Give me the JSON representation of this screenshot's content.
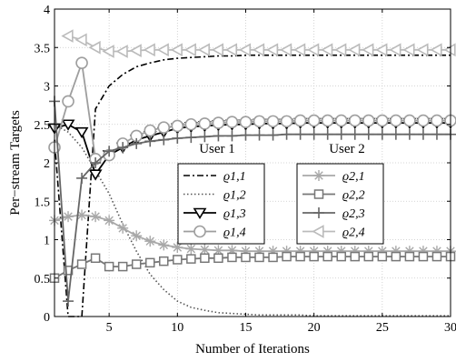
{
  "chart_data": {
    "type": "line",
    "xlabel": "Number of Iterations",
    "ylabel": "Per−stream Targets",
    "xlim": [
      1,
      30
    ],
    "ylim": [
      0,
      4
    ],
    "xticks": [
      5,
      10,
      15,
      20,
      25,
      30
    ],
    "yticks": [
      0,
      0.5,
      1,
      1.5,
      2,
      2.5,
      3,
      3.5,
      4
    ],
    "xtick_labels": [
      "5",
      "10",
      "15",
      "20",
      "25",
      "30"
    ],
    "ytick_labels": [
      "0",
      "0.5",
      "1",
      "1.5",
      "2",
      "2.5",
      "3",
      "3.5",
      "4"
    ],
    "grid": true,
    "legend_groups": [
      {
        "title": "User 1",
        "placement": "center"
      },
      {
        "title": "User 2",
        "placement": "center-right"
      }
    ],
    "x": [
      1,
      2,
      3,
      4,
      5,
      6,
      7,
      8,
      9,
      10,
      11,
      12,
      13,
      14,
      15,
      16,
      17,
      18,
      19,
      20,
      21,
      22,
      23,
      24,
      25,
      26,
      27,
      28,
      29,
      30
    ],
    "series": [
      {
        "name": "ϱ1,1",
        "group": 0,
        "color": "#000000",
        "dash": "7 3 2 3",
        "marker": "none",
        "values": [
          2.3,
          0.0,
          0.0,
          2.7,
          3.0,
          3.15,
          3.25,
          3.3,
          3.34,
          3.36,
          3.37,
          3.38,
          3.39,
          3.39,
          3.4,
          3.4,
          3.4,
          3.4,
          3.4,
          3.4,
          3.4,
          3.4,
          3.4,
          3.4,
          3.4,
          3.4,
          3.4,
          3.4,
          3.4,
          3.4
        ]
      },
      {
        "name": "ϱ1,2",
        "group": 0,
        "color": "#555555",
        "dash": "1.5 2.5",
        "marker": "none",
        "values": [
          2.5,
          2.4,
          2.2,
          1.9,
          1.6,
          1.2,
          0.85,
          0.55,
          0.35,
          0.2,
          0.12,
          0.08,
          0.05,
          0.04,
          0.03,
          0.02,
          0.02,
          0.02,
          0.02,
          0.01,
          0.01,
          0.01,
          0.01,
          0.01,
          0.01,
          0.01,
          0.01,
          0.01,
          0.01,
          0.01
        ]
      },
      {
        "name": "ϱ1,3",
        "group": 0,
        "color": "#000000",
        "dash": "",
        "marker": "triangle-down",
        "values": [
          2.45,
          2.5,
          2.4,
          1.85,
          2.1,
          2.2,
          2.3,
          2.35,
          2.4,
          2.45,
          2.47,
          2.48,
          2.49,
          2.5,
          2.5,
          2.51,
          2.51,
          2.51,
          2.52,
          2.52,
          2.52,
          2.52,
          2.52,
          2.52,
          2.52,
          2.52,
          2.52,
          2.52,
          2.52,
          2.52
        ]
      },
      {
        "name": "ϱ1,4",
        "group": 0,
        "color": "#9e9e9e",
        "dash": "",
        "marker": "circle",
        "values": [
          2.2,
          2.8,
          3.3,
          2.05,
          2.1,
          2.25,
          2.35,
          2.42,
          2.46,
          2.48,
          2.5,
          2.51,
          2.52,
          2.53,
          2.53,
          2.54,
          2.54,
          2.54,
          2.55,
          2.55,
          2.55,
          2.55,
          2.55,
          2.55,
          2.55,
          2.55,
          2.55,
          2.55,
          2.55,
          2.55
        ]
      },
      {
        "name": "ϱ2,1",
        "group": 1,
        "color": "#a8a8a8",
        "dash": "",
        "marker": "asterisk",
        "values": [
          1.25,
          1.3,
          1.32,
          1.3,
          1.25,
          1.15,
          1.05,
          0.98,
          0.93,
          0.9,
          0.88,
          0.87,
          0.86,
          0.86,
          0.85,
          0.85,
          0.85,
          0.85,
          0.85,
          0.85,
          0.85,
          0.85,
          0.85,
          0.85,
          0.85,
          0.85,
          0.85,
          0.85,
          0.85,
          0.85
        ]
      },
      {
        "name": "ϱ2,2",
        "group": 1,
        "color": "#777777",
        "dash": "",
        "marker": "square",
        "values": [
          0.5,
          0.6,
          0.68,
          0.76,
          0.65,
          0.65,
          0.68,
          0.7,
          0.72,
          0.74,
          0.75,
          0.76,
          0.76,
          0.77,
          0.77,
          0.77,
          0.77,
          0.78,
          0.78,
          0.78,
          0.78,
          0.78,
          0.78,
          0.78,
          0.78,
          0.78,
          0.78,
          0.78,
          0.78,
          0.78
        ]
      },
      {
        "name": "ϱ2,3",
        "group": 1,
        "color": "#666666",
        "dash": "",
        "marker": "plus",
        "values": [
          2.8,
          0.2,
          1.8,
          2.0,
          2.15,
          2.2,
          2.25,
          2.28,
          2.3,
          2.32,
          2.33,
          2.34,
          2.35,
          2.35,
          2.36,
          2.36,
          2.36,
          2.37,
          2.37,
          2.37,
          2.37,
          2.37,
          2.37,
          2.37,
          2.37,
          2.37,
          2.37,
          2.37,
          2.37,
          2.37
        ]
      },
      {
        "name": "ϱ2,4",
        "group": 1,
        "color": "#bbbbbb",
        "dash": "",
        "marker": "triangle-left",
        "values": [
          null,
          3.65,
          3.6,
          3.5,
          3.45,
          3.45,
          3.46,
          3.47,
          3.47,
          3.47,
          3.47,
          3.47,
          3.47,
          3.47,
          3.47,
          3.47,
          3.47,
          3.47,
          3.47,
          3.47,
          3.47,
          3.47,
          3.47,
          3.47,
          3.47,
          3.47,
          3.47,
          3.47,
          3.47,
          3.47
        ]
      }
    ]
  }
}
